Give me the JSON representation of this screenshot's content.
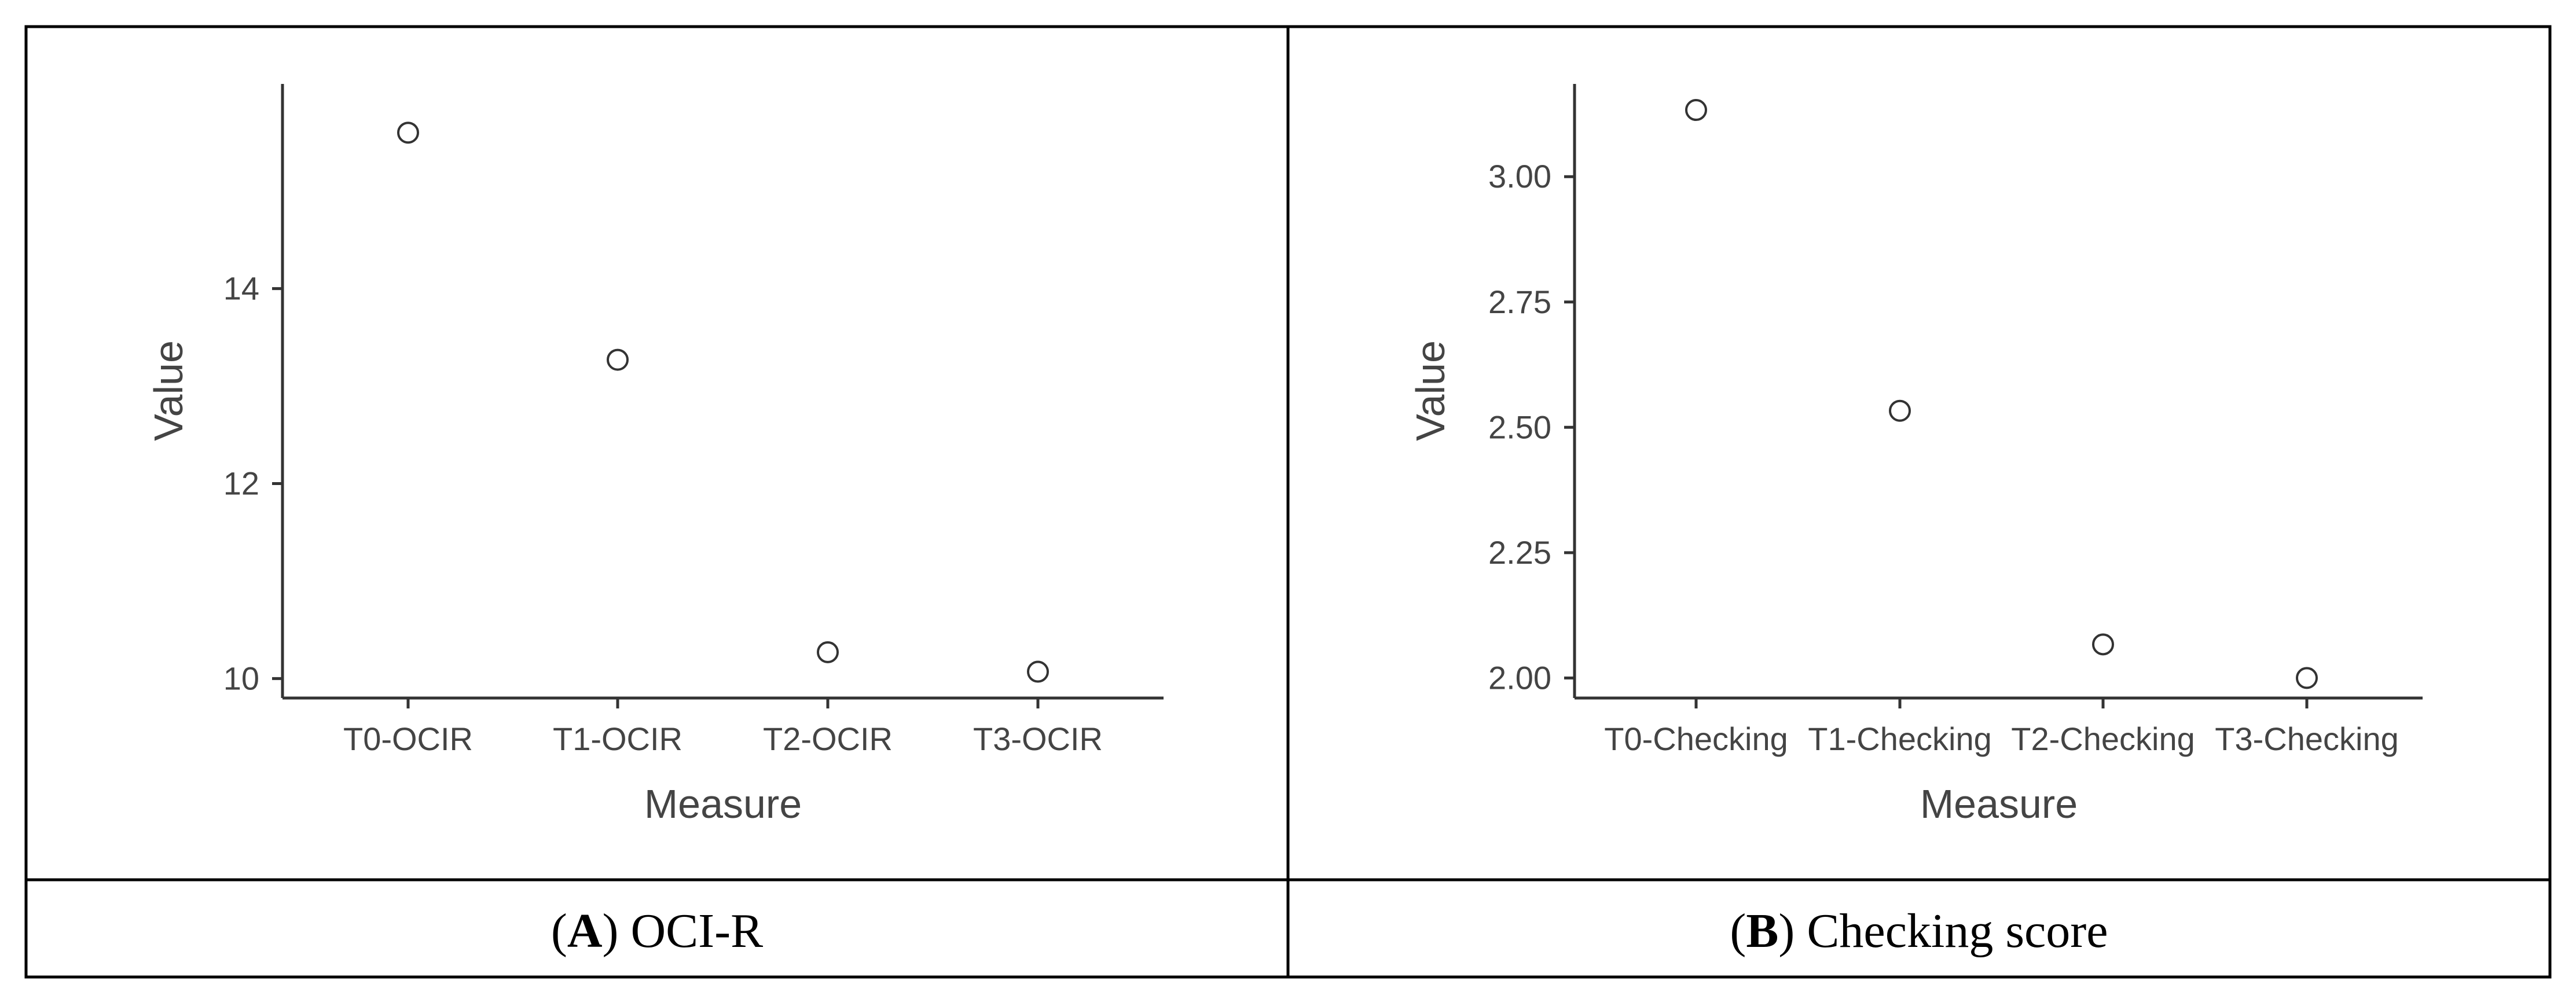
{
  "chart_data": [
    {
      "type": "scatter",
      "panel": "A",
      "caption_letter": "A",
      "caption_text": "OCI-R",
      "xlabel": "Measure",
      "ylabel": "Value",
      "categories": [
        "T0-OCIR",
        "T1-OCIR",
        "T2-OCIR",
        "T3-OCIR"
      ],
      "values": [
        15.6,
        13.27,
        10.27,
        10.07
      ],
      "yticks": [
        10,
        12,
        14
      ],
      "ytick_labels": [
        "10",
        "12",
        "14"
      ],
      "ylim": [
        9.8,
        16.1
      ],
      "grid": false,
      "legend": "none"
    },
    {
      "type": "scatter",
      "panel": "B",
      "caption_letter": "B",
      "caption_text": "Checking score",
      "xlabel": "Measure",
      "ylabel": "Value",
      "categories": [
        "T0-Checking",
        "T1-Checking",
        "T2-Checking",
        "T3-Checking"
      ],
      "values": [
        3.133,
        2.533,
        2.067,
        2.0
      ],
      "yticks": [
        2.0,
        2.25,
        2.5,
        2.75,
        3.0
      ],
      "ytick_labels": [
        "2.00",
        "2.25",
        "2.50",
        "2.75",
        "3.00"
      ],
      "ylim": [
        1.96,
        3.185
      ],
      "grid": false,
      "legend": "none"
    }
  ]
}
